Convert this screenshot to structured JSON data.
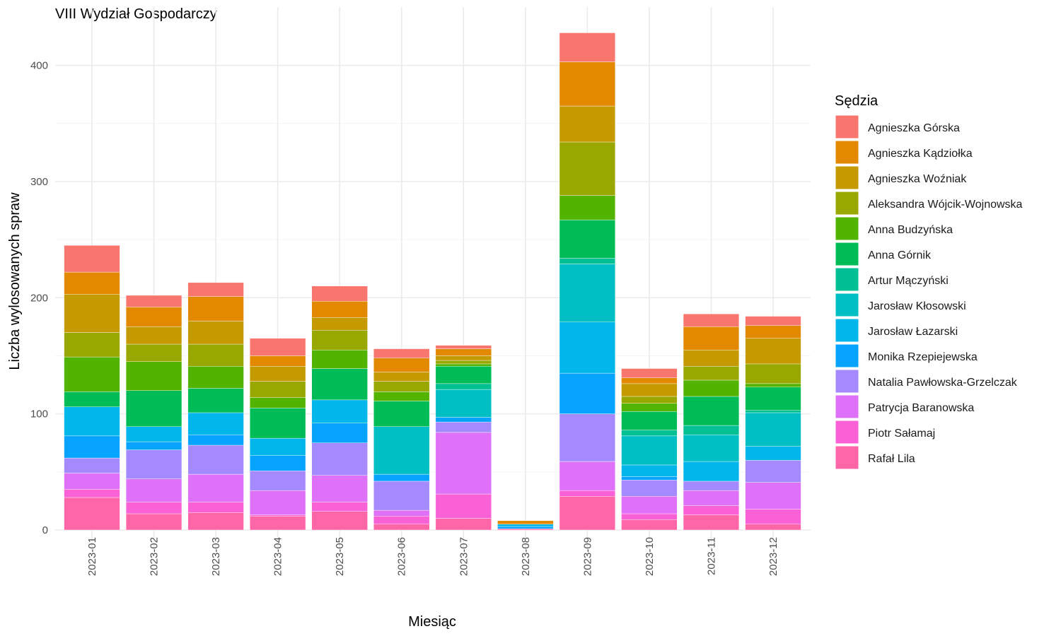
{
  "chart_data": {
    "type": "bar",
    "stacked": true,
    "title": "VIII Wydział Gospodarczy",
    "xlabel": "Miesiąc",
    "ylabel": "Liczba wylosowanych spraw",
    "ylim": [
      0,
      430
    ],
    "yticks": [
      0,
      100,
      200,
      300,
      400
    ],
    "grid": true,
    "legend_title": "Sędzia",
    "legend_position": "right",
    "categories": [
      "2023-01",
      "2023-02",
      "2023-03",
      "2023-04",
      "2023-05",
      "2023-06",
      "2023-07",
      "2023-08",
      "2023-09",
      "2023-10",
      "2023-11",
      "2023-12"
    ],
    "series": [
      {
        "name": "Agnieszka Górska",
        "color": "#F8766D",
        "values": [
          23,
          10,
          12,
          15,
          13,
          8,
          3,
          0,
          25,
          8,
          11,
          8
        ]
      },
      {
        "name": "Agnieszka Kądziołka",
        "color": "#E38900",
        "values": [
          19,
          17,
          21,
          9,
          14,
          12,
          6,
          3,
          38,
          5,
          20,
          11
        ]
      },
      {
        "name": "Agnieszka Woźniak",
        "color": "#C49A00",
        "values": [
          33,
          15,
          20,
          13,
          11,
          8,
          4,
          0,
          31,
          11,
          14,
          22
        ]
      },
      {
        "name": "Aleksandra Wójcik-Wojnowska",
        "color": "#99A800",
        "values": [
          21,
          15,
          19,
          14,
          17,
          9,
          3,
          0,
          46,
          6,
          12,
          17
        ]
      },
      {
        "name": "Anna Budzyńska",
        "color": "#53B400",
        "values": [
          30,
          25,
          19,
          9,
          16,
          8,
          2,
          0,
          21,
          7,
          14,
          3
        ]
      },
      {
        "name": "Anna Górnik",
        "color": "#00BC56",
        "values": [
          13,
          31,
          21,
          26,
          27,
          22,
          15,
          0,
          33,
          16,
          25,
          20
        ]
      },
      {
        "name": "Artur Mączyński",
        "color": "#00C094",
        "values": [
          0,
          0,
          0,
          0,
          0,
          0,
          5,
          0,
          5,
          5,
          8,
          2
        ]
      },
      {
        "name": "Jarosław Kłosowski",
        "color": "#00BFC4",
        "values": [
          0,
          0,
          0,
          0,
          0,
          41,
          24,
          0,
          50,
          25,
          23,
          29
        ]
      },
      {
        "name": "Jarosław Łazarski",
        "color": "#00B6EB",
        "values": [
          25,
          13,
          19,
          15,
          20,
          0,
          0,
          2,
          44,
          10,
          17,
          12
        ]
      },
      {
        "name": "Monika Rzepiejewska",
        "color": "#06A4FF",
        "values": [
          19,
          7,
          9,
          13,
          17,
          6,
          4,
          2,
          35,
          3,
          0,
          0
        ]
      },
      {
        "name": "Natalia Pawłowska-Grzelczak",
        "color": "#A58AFF",
        "values": [
          13,
          25,
          25,
          17,
          28,
          25,
          9,
          0,
          41,
          14,
          8,
          19
        ]
      },
      {
        "name": "Patrycja Baranowska",
        "color": "#DF70F8",
        "values": [
          14,
          20,
          24,
          21,
          23,
          5,
          53,
          0,
          25,
          15,
          13,
          23
        ]
      },
      {
        "name": "Piotr Sałamaj",
        "color": "#FB61D7",
        "values": [
          7,
          10,
          9,
          1,
          8,
          7,
          21,
          0,
          5,
          5,
          8,
          13
        ]
      },
      {
        "name": "Rafał Lila",
        "color": "#FF66A8",
        "values": [
          28,
          14,
          15,
          12,
          16,
          5,
          10,
          1,
          29,
          9,
          13,
          5
        ]
      }
    ]
  }
}
